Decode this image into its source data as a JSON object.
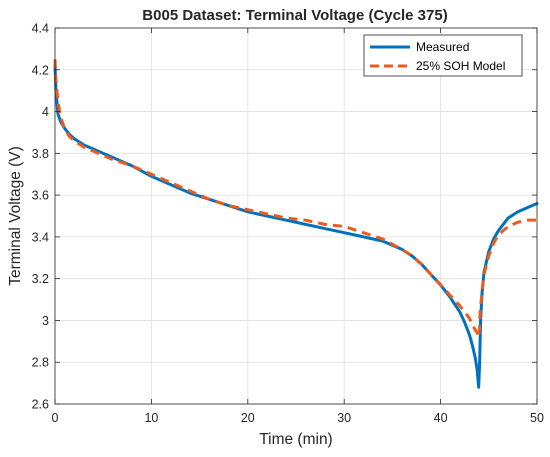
{
  "chart_data": {
    "type": "line",
    "title": "B005 Dataset: Terminal Voltage (Cycle 375)",
    "xlabel": "Time (min)",
    "ylabel": "Terminal Voltage (V)",
    "xlim": [
      0,
      50
    ],
    "ylim": [
      2.6,
      4.4
    ],
    "xticks": [
      0,
      10,
      20,
      30,
      40,
      50
    ],
    "xtick_labels": [
      "0",
      "10",
      "20",
      "30",
      "40",
      "50"
    ],
    "yticks": [
      2.6,
      2.8,
      3.0,
      3.2,
      3.4,
      3.6,
      3.8,
      4.0,
      4.2,
      4.4
    ],
    "ytick_labels": [
      "2.6",
      "2.8",
      "3",
      "3.2",
      "3.4",
      "3.6",
      "3.8",
      "4",
      "4.2",
      "4.4"
    ],
    "grid": true,
    "legend_position": "top-right",
    "series": [
      {
        "name": "Measured",
        "color": "#0072BD",
        "style": "solid",
        "x": [
          0,
          0.1,
          0.3,
          0.6,
          1,
          1.5,
          2,
          3,
          4,
          5,
          6,
          8,
          10,
          12,
          14,
          16,
          18,
          20,
          22,
          24,
          26,
          28,
          30,
          32,
          34,
          36,
          37,
          38,
          39,
          40,
          41,
          42,
          42.5,
          43,
          43.3,
          43.6,
          43.8,
          43.95,
          44.05,
          44.15,
          44.3,
          44.5,
          45,
          45.5,
          46,
          46.5,
          47,
          48,
          49,
          50
        ],
        "y": [
          4.22,
          4.1,
          3.99,
          3.95,
          3.92,
          3.89,
          3.87,
          3.84,
          3.82,
          3.8,
          3.78,
          3.74,
          3.69,
          3.65,
          3.61,
          3.58,
          3.55,
          3.52,
          3.5,
          3.48,
          3.46,
          3.44,
          3.42,
          3.4,
          3.38,
          3.34,
          3.31,
          3.27,
          3.22,
          3.17,
          3.11,
          3.04,
          2.99,
          2.93,
          2.88,
          2.82,
          2.76,
          2.68,
          2.8,
          3.0,
          3.13,
          3.23,
          3.33,
          3.39,
          3.43,
          3.46,
          3.49,
          3.52,
          3.54,
          3.56
        ]
      },
      {
        "name": "25% SOH Model",
        "color": "#EB5B1E",
        "style": "dashed",
        "x": [
          0,
          0.1,
          0.3,
          0.6,
          1,
          1.5,
          2,
          3,
          4,
          5,
          6,
          8,
          10,
          12,
          14,
          16,
          18,
          20,
          22,
          24,
          26,
          28,
          30,
          32,
          34,
          36,
          37,
          38,
          39,
          40,
          41,
          42,
          42.5,
          43,
          43.4,
          43.8,
          44.0,
          44.1,
          44.3,
          44.5,
          45,
          45.5,
          46,
          46.5,
          47,
          48,
          49,
          50
        ],
        "y": [
          4.25,
          4.15,
          4.05,
          3.97,
          3.92,
          3.88,
          3.86,
          3.83,
          3.81,
          3.79,
          3.77,
          3.74,
          3.7,
          3.66,
          3.62,
          3.58,
          3.55,
          3.53,
          3.51,
          3.49,
          3.48,
          3.46,
          3.45,
          3.42,
          3.39,
          3.34,
          3.31,
          3.27,
          3.22,
          3.17,
          3.12,
          3.07,
          3.04,
          3.01,
          2.97,
          2.94,
          2.92,
          3.04,
          3.14,
          3.22,
          3.31,
          3.37,
          3.41,
          3.43,
          3.45,
          3.47,
          3.48,
          3.48
        ]
      }
    ]
  },
  "colors": {
    "background": "#ffffff",
    "axis": "#262626",
    "grid": "#dfdfdf"
  }
}
